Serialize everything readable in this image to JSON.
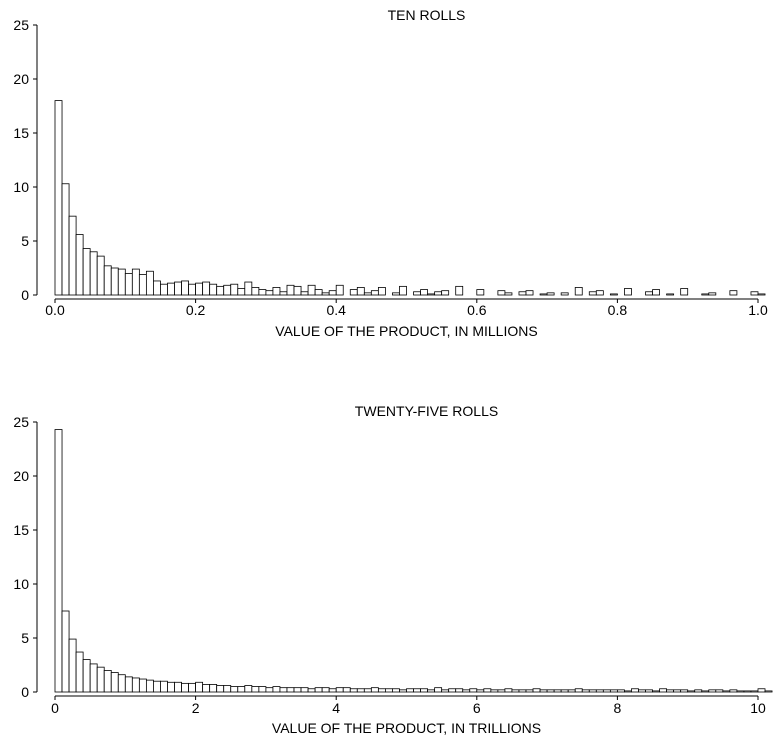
{
  "chart_data": [
    {
      "type": "bar",
      "title": "TEN ROLLS",
      "xlabel": "VALUE OF THE PRODUCT, IN MILLIONS",
      "ylabel": "",
      "xlim": [
        0.0,
        1.0
      ],
      "ylim": [
        0,
        25
      ],
      "xticks": [
        "0.0",
        "0.2",
        "0.4",
        "0.6",
        "0.8",
        "1.0"
      ],
      "yticks": [
        "0",
        "5",
        "10",
        "15",
        "20",
        "25"
      ],
      "bin_width": 0.01,
      "values": [
        18.0,
        10.3,
        7.3,
        5.6,
        4.3,
        4.0,
        3.6,
        2.7,
        2.5,
        2.4,
        2.0,
        2.4,
        1.9,
        2.2,
        1.3,
        1.0,
        1.1,
        1.2,
        1.3,
        1.0,
        1.1,
        1.2,
        1.0,
        0.8,
        0.9,
        1.0,
        0.6,
        1.2,
        0.7,
        0.5,
        0.4,
        0.7,
        0.3,
        0.9,
        0.8,
        0.3,
        0.9,
        0.5,
        0.2,
        0.4,
        0.9,
        0.0,
        0.5,
        0.7,
        0.2,
        0.4,
        0.7,
        0.0,
        0.2,
        0.8,
        0.0,
        0.3,
        0.5,
        0.1,
        0.3,
        0.4,
        0.0,
        0.8,
        0.0,
        0.0,
        0.5,
        0.0,
        0.0,
        0.4,
        0.2,
        0.0,
        0.3,
        0.4,
        0.0,
        0.1,
        0.2,
        0.0,
        0.2,
        0.0,
        0.7,
        0.0,
        0.3,
        0.4,
        0.0,
        0.1,
        0.0,
        0.6,
        0.0,
        0.0,
        0.3,
        0.5,
        0.0,
        0.1,
        0.0,
        0.6,
        0.0,
        0.0,
        0.1,
        0.2,
        0.0,
        0.0,
        0.4,
        0.0,
        0.0,
        0.3,
        0.1
      ]
    },
    {
      "type": "bar",
      "title": "TWENTY-FIVE ROLLS",
      "xlabel": "VALUE OF THE PRODUCT, IN TRILLIONS",
      "ylabel": "",
      "xlim": [
        0,
        10
      ],
      "ylim": [
        0,
        25
      ],
      "xticks": [
        "0",
        "2",
        "4",
        "6",
        "8",
        "10"
      ],
      "yticks": [
        "0",
        "5",
        "10",
        "15",
        "20",
        "25"
      ],
      "bin_width": 0.1,
      "values": [
        24.3,
        7.5,
        4.9,
        3.7,
        3.0,
        2.6,
        2.3,
        2.0,
        1.8,
        1.6,
        1.4,
        1.3,
        1.2,
        1.1,
        1.0,
        1.0,
        0.9,
        0.9,
        0.8,
        0.8,
        0.9,
        0.7,
        0.7,
        0.6,
        0.6,
        0.5,
        0.5,
        0.6,
        0.5,
        0.5,
        0.4,
        0.5,
        0.4,
        0.4,
        0.4,
        0.4,
        0.3,
        0.4,
        0.4,
        0.3,
        0.4,
        0.4,
        0.3,
        0.3,
        0.3,
        0.4,
        0.3,
        0.3,
        0.3,
        0.2,
        0.3,
        0.3,
        0.3,
        0.2,
        0.4,
        0.2,
        0.3,
        0.3,
        0.2,
        0.3,
        0.2,
        0.3,
        0.2,
        0.2,
        0.3,
        0.2,
        0.2,
        0.2,
        0.3,
        0.2,
        0.2,
        0.2,
        0.2,
        0.2,
        0.3,
        0.2,
        0.2,
        0.2,
        0.2,
        0.2,
        0.2,
        0.1,
        0.3,
        0.2,
        0.2,
        0.1,
        0.3,
        0.2,
        0.2,
        0.2,
        0.1,
        0.2,
        0.1,
        0.2,
        0.2,
        0.1,
        0.2,
        0.1,
        0.1,
        0.1,
        0.3,
        0.1
      ]
    }
  ]
}
